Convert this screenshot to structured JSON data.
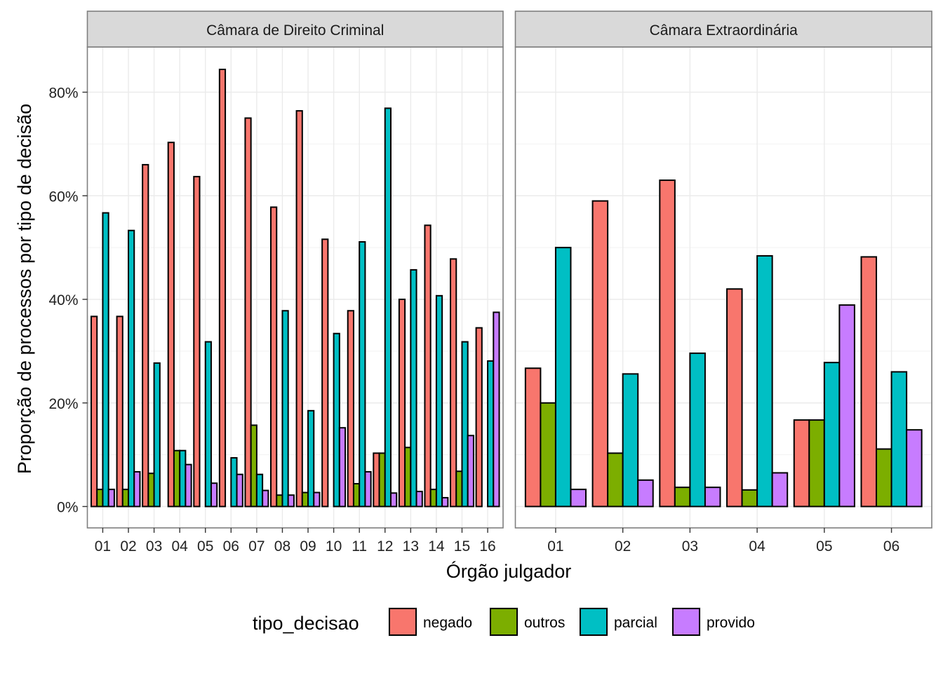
{
  "chart_data": {
    "type": "bar",
    "xlabel": "Órgão julgador",
    "ylabel": "Proporção de processos por tipo de decisão",
    "y_ticks": [
      "0%",
      "20%",
      "40%",
      "60%",
      "80%"
    ],
    "ylim": [
      0,
      0.89
    ],
    "grid": true,
    "legend": {
      "title": "tipo_decisao",
      "position": "bottom",
      "entries": [
        {
          "name": "negado",
          "color": "#F8766D"
        },
        {
          "name": "outros",
          "color": "#7CAE00"
        },
        {
          "name": "parcial",
          "color": "#00BFC4"
        },
        {
          "name": "provido",
          "color": "#C77CFF"
        }
      ]
    },
    "panels": [
      {
        "strip": "Câmara de Direito Criminal",
        "categories": [
          "01",
          "02",
          "03",
          "04",
          "05",
          "06",
          "07",
          "08",
          "09",
          "10",
          "11",
          "12",
          "13",
          "14",
          "15",
          "16"
        ],
        "series": [
          {
            "name": "negado",
            "values": [
              0.367,
              0.367,
              0.66,
              0.703,
              0.637,
              0.844,
              0.75,
              0.578,
              0.764,
              0.516,
              0.378,
              0.103,
              0.4,
              0.543,
              0.478,
              0.345
            ]
          },
          {
            "name": "outros",
            "values": [
              0.033,
              0.033,
              0.064,
              0.108,
              null,
              null,
              0.157,
              0.022,
              0.027,
              null,
              0.044,
              0.103,
              0.114,
              0.033,
              0.068,
              null
            ]
          },
          {
            "name": "parcial",
            "values": [
              0.567,
              0.533,
              0.277,
              0.108,
              0.318,
              0.094,
              0.062,
              0.378,
              0.185,
              0.334,
              0.511,
              0.769,
              0.457,
              0.407,
              0.318,
              0.281
            ]
          },
          {
            "name": "provido",
            "values": [
              0.033,
              0.067,
              null,
              0.081,
              0.045,
              0.062,
              0.031,
              0.022,
              0.027,
              0.152,
              0.067,
              0.026,
              0.029,
              0.017,
              0.137,
              0.375
            ]
          }
        ]
      },
      {
        "strip": "Câmara Extraordinária",
        "categories": [
          "01",
          "02",
          "03",
          "04",
          "05",
          "06"
        ],
        "series": [
          {
            "name": "negado",
            "values": [
              0.267,
              0.59,
              0.63,
              0.42,
              0.167,
              0.482
            ]
          },
          {
            "name": "outros",
            "values": [
              0.2,
              0.103,
              0.037,
              0.032,
              0.167,
              0.111
            ]
          },
          {
            "name": "parcial",
            "values": [
              0.5,
              0.256,
              0.296,
              0.484,
              0.278,
              0.26
            ]
          },
          {
            "name": "provido",
            "values": [
              0.033,
              0.051,
              0.037,
              0.065,
              0.389,
              0.148
            ]
          }
        ]
      }
    ]
  }
}
